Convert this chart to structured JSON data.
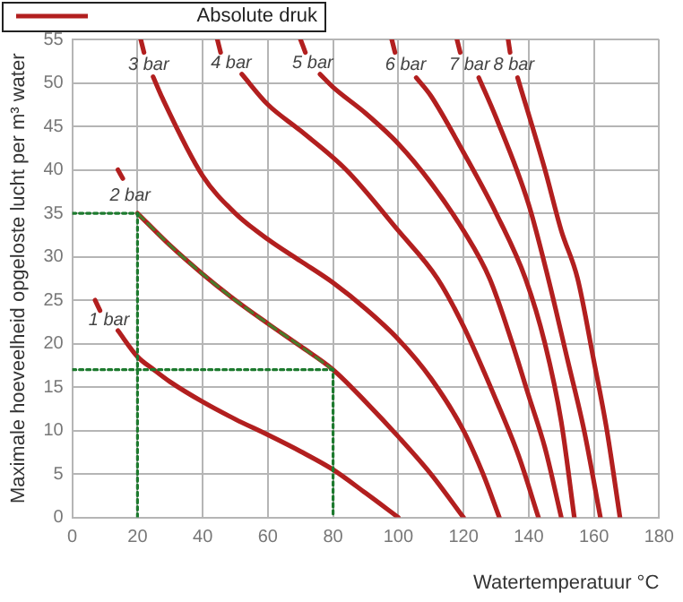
{
  "chart_data": {
    "type": "line",
    "xlabel": "Watertemperatuur °C",
    "ylabel": "Maximale hoeveelheid opgeloste lucht per m³ water",
    "xlim": [
      0,
      180
    ],
    "xticks": [
      0,
      20,
      40,
      60,
      80,
      100,
      120,
      140,
      160,
      180
    ],
    "ylim": [
      0,
      55
    ],
    "yticks": [
      0,
      5,
      10,
      15,
      20,
      25,
      30,
      35,
      40,
      45,
      50,
      55
    ],
    "grid": true,
    "legend": "top left",
    "legend_title": "Absolute druk",
    "marker": "none",
    "line_style": "solid",
    "series": [
      {
        "name": "1 bar",
        "color": "#b21f1f",
        "x": [
          7,
          8.5,
          11,
          14,
          20,
          25,
          30,
          40,
          50,
          60,
          70,
          80,
          90,
          100
        ],
        "values": [
          25,
          23.8,
          null,
          21.5,
          18.5,
          17,
          15.6,
          13.3,
          11.3,
          9.5,
          7.6,
          5.5,
          2.8,
          0
        ]
      },
      {
        "name": "2 bar",
        "color": "#b21f1f",
        "x": [
          14,
          15.5,
          18,
          20,
          30,
          40,
          50,
          60,
          70,
          80,
          90,
          100,
          110,
          120
        ],
        "values": [
          40,
          39,
          null,
          35,
          31.3,
          28,
          25,
          22.3,
          19.7,
          17,
          13.3,
          9.3,
          5,
          0
        ]
      },
      {
        "name": "3 bar",
        "color": "#b21f1f",
        "x": [
          21,
          22,
          23.5,
          24.8,
          27.7,
          40,
          50,
          60,
          70,
          80,
          90,
          100,
          110,
          120,
          126,
          131
        ],
        "values": [
          55,
          53.5,
          null,
          50.7,
          48.2,
          39.3,
          35,
          32,
          29.5,
          27,
          24,
          20.5,
          16,
          10,
          5,
          0
        ]
      },
      {
        "name": "4 bar",
        "color": "#b21f1f",
        "x": [
          44.5,
          45.5,
          49,
          52,
          60,
          70,
          84,
          100,
          112,
          120,
          130,
          137,
          143
        ],
        "values": [
          55,
          53.5,
          null,
          51,
          47.5,
          44.5,
          40,
          33,
          27.5,
          22,
          13.5,
          7,
          0
        ]
      },
      {
        "name": "5 bar",
        "color": "#b21f1f",
        "x": [
          70,
          71.5,
          74,
          76,
          80,
          90,
          100,
          110,
          120,
          128,
          135,
          140,
          145,
          150
        ],
        "values": [
          55,
          53.5,
          null,
          51,
          49.5,
          46.5,
          43,
          38.5,
          33,
          27.5,
          20,
          14,
          8,
          0
        ]
      },
      {
        "name": "6 bar",
        "color": "#b21f1f",
        "x": [
          98,
          99,
          102,
          105.5,
          110,
          120,
          130,
          139,
          145,
          150,
          154
        ],
        "values": [
          55,
          53.5,
          null,
          50.6,
          48.5,
          42,
          35,
          27.5,
          20,
          11,
          0
        ]
      },
      {
        "name": "7 bar",
        "color": "#b21f1f",
        "x": [
          118,
          119,
          122,
          124.7,
          130,
          140,
          146,
          152,
          157,
          162
        ],
        "values": [
          55,
          53.5,
          null,
          50.6,
          46,
          36,
          27.5,
          18,
          10,
          0
        ]
      },
      {
        "name": "8 bar",
        "color": "#b21f1f",
        "x": [
          133.7,
          134.3,
          135.5,
          136.6,
          145,
          150,
          155,
          160,
          164,
          168
        ],
        "values": [
          55,
          53.5,
          null,
          50.6,
          40,
          33,
          27.5,
          18,
          10,
          0
        ]
      },
      {
        "color": "#4a7a2a",
        "line_style": "dashed",
        "x": [
          20,
          30,
          40,
          50,
          60,
          70,
          80
        ],
        "values": [
          35,
          31.3,
          28,
          25,
          22.3,
          19.7,
          17
        ]
      },
      {
        "color": "#1d7a2e",
        "line_style": "dotted",
        "x": [
          0,
          20,
          20
        ],
        "values": [
          35,
          35,
          0
        ]
      },
      {
        "color": "#1d7a2e",
        "line_style": "dotted",
        "x": [
          0,
          80,
          80
        ],
        "values": [
          17,
          17,
          0
        ]
      }
    ]
  }
}
